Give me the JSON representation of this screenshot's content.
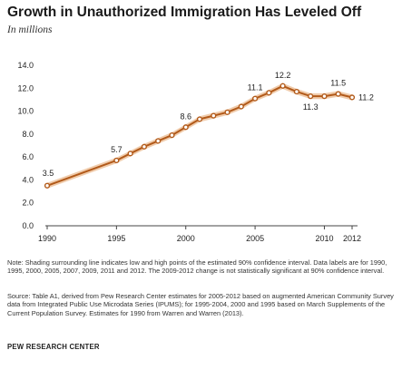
{
  "chart_data": {
    "type": "line",
    "title": "Growth in Unauthorized Immigration Has Leveled Off",
    "subtitle": "In millions",
    "xlabel": "",
    "ylabel": "",
    "x": [
      1990,
      1995,
      1996,
      1997,
      1998,
      1999,
      2000,
      2001,
      2002,
      2003,
      2004,
      2005,
      2006,
      2007,
      2008,
      2009,
      2010,
      2011,
      2012
    ],
    "series": [
      {
        "values": [
          3.5,
          5.7,
          6.3,
          6.9,
          7.4,
          7.9,
          8.6,
          9.3,
          9.6,
          9.9,
          10.4,
          11.1,
          11.6,
          12.2,
          11.7,
          11.3,
          11.3,
          11.5,
          11.2
        ],
        "color": "#b25a1a",
        "band_color": "#f0ccac"
      }
    ],
    "data_labels": [
      {
        "x": 1990,
        "text": "3.5",
        "position": "above"
      },
      {
        "x": 1995,
        "text": "5.7",
        "position": "above"
      },
      {
        "x": 2000,
        "text": "8.6",
        "position": "above"
      },
      {
        "x": 2005,
        "text": "11.1",
        "position": "above"
      },
      {
        "x": 2007,
        "text": "12.2",
        "position": "above"
      },
      {
        "x": 2009,
        "text": "11.3",
        "position": "below"
      },
      {
        "x": 2011,
        "text": "11.5",
        "position": "above"
      },
      {
        "x": 2012,
        "text": "11.2",
        "position": "right"
      }
    ],
    "y_ticks": [
      "0.0",
      "2.0",
      "4.0",
      "6.0",
      "8.0",
      "10.0",
      "12.0",
      "14.0"
    ],
    "x_ticks": [
      1990,
      1995,
      2000,
      2005,
      2010,
      2012
    ],
    "ylim": [
      0,
      14
    ],
    "xlim": [
      1990,
      2012
    ],
    "grid": false,
    "legend": "none",
    "note": "Note: Shading surrounding line indicates low and high points of the estimated 90% confidence interval. Data labels are for 1990, 1995, 2000, 2005, 2007, 2009, 2011 and 2012. The 2009-2012 change is not statistically significant at 90% confidence interval.",
    "source": "Source: Table A1, derived from Pew Research Center estimates for 2005-2012 based on augmented American Community Survey data from Integrated Public Use Microdata Series (IPUMS); for 1995-2004, 2000 and 1995 based on March Supplements of the Current Population Survey. Estimates for 1990 from Warren and Warren (2013).",
    "footer": "PEW RESEARCH CENTER"
  }
}
